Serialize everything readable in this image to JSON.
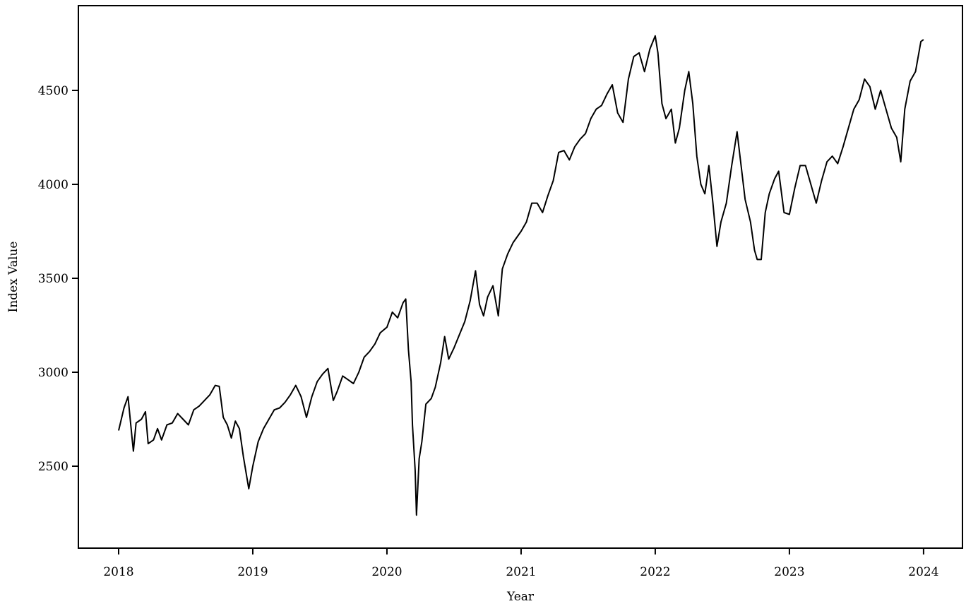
{
  "chart_data": {
    "type": "line",
    "x_label": "Year",
    "y_label": "Index Value",
    "xlim": [
      2017.7,
      2024.29
    ],
    "ylim": [
      2064,
      4951
    ],
    "xticks": [
      2018,
      2019,
      2020,
      2021,
      2022,
      2023,
      2024
    ],
    "yticks": [
      2500,
      3000,
      3500,
      4000,
      4500
    ],
    "grid": false,
    "series": [
      {
        "color": "#000000",
        "x": [
          2018.0,
          2018.04,
          2018.07,
          2018.1,
          2018.11,
          2018.13,
          2018.17,
          2018.2,
          2018.22,
          2018.26,
          2018.29,
          2018.32,
          2018.36,
          2018.4,
          2018.44,
          2018.48,
          2018.52,
          2018.56,
          2018.6,
          2018.64,
          2018.68,
          2018.72,
          2018.75,
          2018.78,
          2018.81,
          2018.84,
          2018.87,
          2018.9,
          2018.93,
          2018.97,
          2019.0,
          2019.04,
          2019.08,
          2019.12,
          2019.16,
          2019.2,
          2019.24,
          2019.28,
          2019.32,
          2019.36,
          2019.4,
          2019.44,
          2019.48,
          2019.52,
          2019.56,
          2019.6,
          2019.63,
          2019.67,
          2019.71,
          2019.75,
          2019.79,
          2019.83,
          2019.87,
          2019.91,
          2019.95,
          2020.0,
          2020.04,
          2020.08,
          2020.12,
          2020.14,
          2020.16,
          2020.18,
          2020.19,
          2020.21,
          2020.22,
          2020.24,
          2020.26,
          2020.29,
          2020.33,
          2020.36,
          2020.4,
          2020.43,
          2020.46,
          2020.5,
          2020.54,
          2020.58,
          2020.62,
          2020.66,
          2020.69,
          2020.72,
          2020.75,
          2020.79,
          2020.83,
          2020.86,
          2020.9,
          2020.94,
          2021.0,
          2021.04,
          2021.08,
          2021.12,
          2021.16,
          2021.2,
          2021.24,
          2021.28,
          2021.32,
          2021.36,
          2021.4,
          2021.44,
          2021.48,
          2021.52,
          2021.56,
          2021.6,
          2021.64,
          2021.68,
          2021.72,
          2021.76,
          2021.8,
          2021.84,
          2021.88,
          2021.92,
          2021.96,
          2022.0,
          2022.02,
          2022.05,
          2022.08,
          2022.12,
          2022.15,
          2022.18,
          2022.22,
          2022.25,
          2022.28,
          2022.31,
          2022.34,
          2022.37,
          2022.4,
          2022.43,
          2022.46,
          2022.49,
          2022.53,
          2022.57,
          2022.61,
          2022.64,
          2022.67,
          2022.71,
          2022.74,
          2022.76,
          2022.79,
          2022.82,
          2022.85,
          2022.89,
          2022.92,
          2022.96,
          2023.0,
          2023.04,
          2023.08,
          2023.12,
          2023.16,
          2023.2,
          2023.24,
          2023.28,
          2023.32,
          2023.36,
          2023.4,
          2023.44,
          2023.48,
          2023.52,
          2023.56,
          2023.6,
          2023.64,
          2023.68,
          2023.72,
          2023.76,
          2023.8,
          2023.83,
          2023.86,
          2023.9,
          2023.94,
          2023.98,
          2024.0
        ],
        "values": [
          2690,
          2810,
          2870,
          2650,
          2580,
          2730,
          2750,
          2790,
          2620,
          2640,
          2700,
          2640,
          2720,
          2730,
          2780,
          2750,
          2720,
          2800,
          2820,
          2850,
          2880,
          2930,
          2925,
          2760,
          2720,
          2650,
          2740,
          2700,
          2550,
          2380,
          2500,
          2630,
          2700,
          2750,
          2800,
          2810,
          2840,
          2880,
          2930,
          2870,
          2760,
          2870,
          2950,
          2990,
          3020,
          2850,
          2900,
          2980,
          2960,
          2940,
          3000,
          3080,
          3110,
          3150,
          3210,
          3240,
          3320,
          3290,
          3370,
          3390,
          3120,
          2950,
          2720,
          2480,
          2240,
          2540,
          2630,
          2830,
          2860,
          2920,
          3050,
          3190,
          3070,
          3130,
          3200,
          3270,
          3380,
          3540,
          3360,
          3300,
          3400,
          3460,
          3300,
          3550,
          3630,
          3690,
          3750,
          3800,
          3900,
          3900,
          3850,
          3940,
          4020,
          4170,
          4180,
          4130,
          4200,
          4240,
          4270,
          4350,
          4400,
          4420,
          4480,
          4530,
          4380,
          4330,
          4560,
          4680,
          4700,
          4600,
          4720,
          4790,
          4700,
          4430,
          4350,
          4400,
          4220,
          4300,
          4500,
          4600,
          4430,
          4150,
          4000,
          3950,
          4100,
          3900,
          3670,
          3800,
          3900,
          4100,
          4280,
          4100,
          3920,
          3800,
          3650,
          3600,
          3600,
          3850,
          3950,
          4030,
          4070,
          3850,
          3840,
          3980,
          4100,
          4100,
          4000,
          3900,
          4020,
          4120,
          4150,
          4110,
          4200,
          4300,
          4400,
          4450,
          4560,
          4520,
          4400,
          4500,
          4400,
          4300,
          4250,
          4120,
          4400,
          4550,
          4600,
          4760,
          4770
        ]
      }
    ]
  }
}
